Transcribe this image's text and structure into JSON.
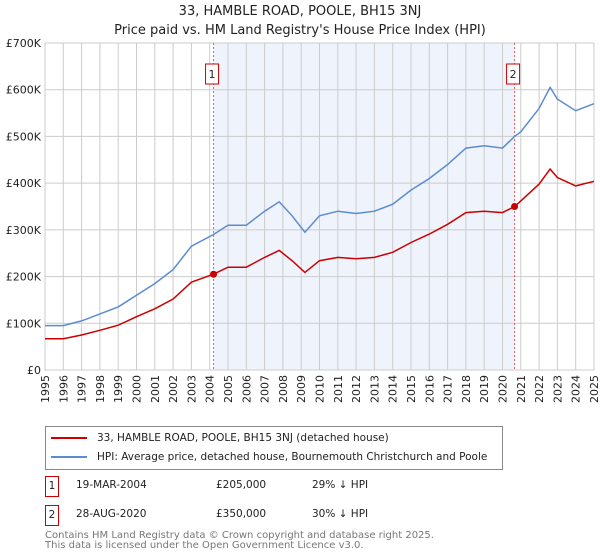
{
  "title": "33, HAMBLE ROAD, POOLE, BH15 3NJ",
  "subtitle": "Price paid vs. HM Land Registry's House Price Index (HPI)",
  "chart_data": {
    "type": "line",
    "title": "33, HAMBLE ROAD, POOLE, BH15 3NJ",
    "xlim": [
      1995,
      2025
    ],
    "ylim": [
      0,
      700000
    ],
    "yticks": [
      {
        "v": 0,
        "label": "£0"
      },
      {
        "v": 100000,
        "label": "£100K"
      },
      {
        "v": 200000,
        "label": "£200K"
      },
      {
        "v": 300000,
        "label": "£300K"
      },
      {
        "v": 400000,
        "label": "£400K"
      },
      {
        "v": 500000,
        "label": "£500K"
      },
      {
        "v": 600000,
        "label": "£600K"
      },
      {
        "v": 700000,
        "label": "£700K"
      }
    ],
    "xticks": [
      "1995",
      "1996",
      "1997",
      "1998",
      "1999",
      "2000",
      "2001",
      "2002",
      "2003",
      "2004",
      "2005",
      "2006",
      "2007",
      "2008",
      "2009",
      "2010",
      "2011",
      "2012",
      "2013",
      "2014",
      "2015",
      "2016",
      "2017",
      "2018",
      "2019",
      "2020",
      "2021",
      "2022",
      "2023",
      "2024",
      "2025"
    ],
    "grid": true,
    "series": [
      {
        "name": "33, HAMBLE ROAD, POOLE, BH15 3NJ (detached house)",
        "color": "#cc0000",
        "x": [
          1995,
          1996,
          1997,
          1998,
          1999,
          2000,
          2001,
          2002,
          2003,
          2004.21,
          2005,
          2006,
          2007,
          2007.8,
          2008.5,
          2009.2,
          2010,
          2011,
          2012,
          2013,
          2014,
          2015,
          2016,
          2017,
          2018,
          2019,
          2020,
          2020.66,
          2021,
          2022,
          2022.6,
          2023,
          2024,
          2025
        ],
        "y": [
          67000,
          67000,
          75000,
          85000,
          96000,
          114000,
          131000,
          152000,
          188000,
          205000,
          220000,
          220000,
          241000,
          256000,
          234000,
          209000,
          234000,
          241000,
          238000,
          241000,
          252000,
          273000,
          291000,
          312000,
          337000,
          340000,
          337000,
          350000,
          362000,
          398000,
          430000,
          412000,
          394000,
          404000
        ]
      },
      {
        "name": "HPI: Average price, detached house, Bournemouth Christchurch and Poole",
        "color": "#5b8bd0",
        "x": [
          1995,
          1996,
          1997,
          1998,
          1999,
          2000,
          2001,
          2002,
          2003,
          2004.21,
          2005,
          2006,
          2007,
          2007.8,
          2008.5,
          2009.2,
          2010,
          2011,
          2012,
          2013,
          2014,
          2015,
          2016,
          2017,
          2018,
          2019,
          2020,
          2020.66,
          2021,
          2022,
          2022.6,
          2023,
          2024,
          2025
        ],
        "y": [
          95000,
          95000,
          105000,
          120000,
          135000,
          160000,
          185000,
          215000,
          265000,
          290000,
          310000,
          310000,
          340000,
          360000,
          330000,
          295000,
          330000,
          340000,
          335000,
          340000,
          355000,
          385000,
          410000,
          440000,
          475000,
          480000,
          475000,
          500000,
          510000,
          560000,
          605000,
          580000,
          555000,
          570000
        ]
      }
    ],
    "annotations": [
      {
        "label": "1",
        "x": 2004.21,
        "y": 205000
      },
      {
        "label": "2",
        "x": 2020.66,
        "y": 350000
      }
    ],
    "shaded_range": [
      2004.21,
      2020.66
    ]
  },
  "legend": {
    "red": "33, HAMBLE ROAD, POOLE, BH15 3NJ (detached house)",
    "blue": "HPI: Average price, detached house, Bournemouth Christchurch and Poole"
  },
  "transactions": [
    {
      "num": "1",
      "date": "19-MAR-2004",
      "price": "£205,000",
      "hpi": "29% ↓ HPI"
    },
    {
      "num": "2",
      "date": "28-AUG-2020",
      "price": "£350,000",
      "hpi": "30% ↓ HPI"
    }
  ],
  "footer": {
    "line1": "Contains HM Land Registry data © Crown copyright and database right 2025.",
    "line2": "This data is licensed under the Open Government Licence v3.0."
  }
}
